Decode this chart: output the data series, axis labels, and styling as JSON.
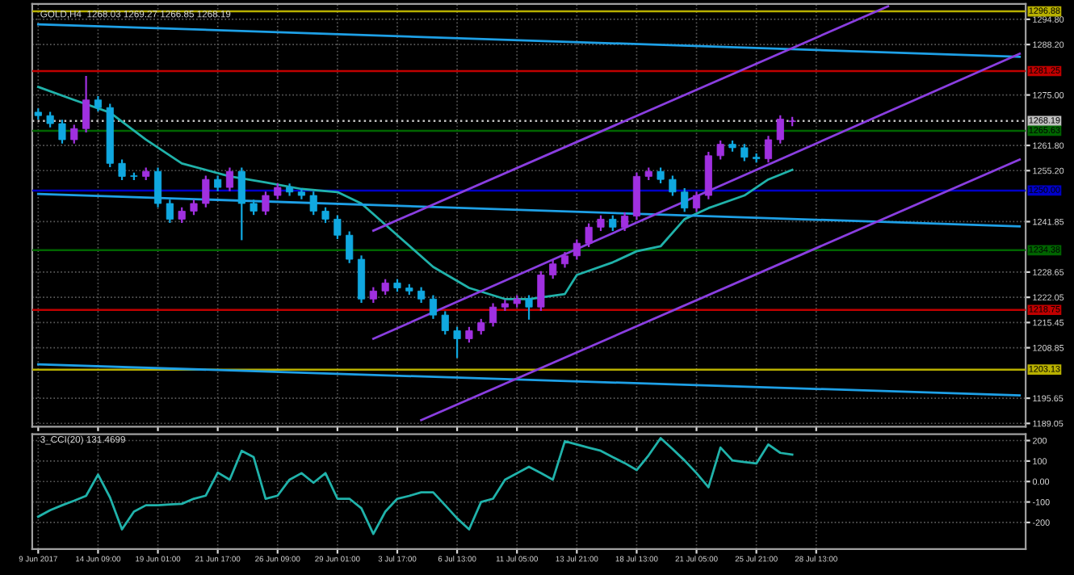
{
  "chart_data": [
    {
      "type": "candlestick",
      "title": "GOLD,H4  1268.03 1269.27 1266.85 1268.19",
      "categories": [
        null,
        null,
        null,
        null,
        null,
        null,
        null,
        null,
        null,
        null,
        null,
        null,
        null,
        null,
        null,
        null,
        null,
        null,
        null,
        null,
        null,
        null,
        null,
        null,
        null,
        null,
        null,
        null,
        null,
        null,
        null,
        null,
        null,
        null,
        null,
        null,
        null,
        null,
        null,
        null,
        null,
        null,
        null,
        null,
        null,
        null,
        null,
        null,
        null,
        null,
        null,
        null,
        null,
        null,
        null,
        null,
        null,
        null,
        null,
        null,
        null,
        null,
        null,
        null,
        null,
        null,
        null,
        null,
        null,
        null,
        null,
        null,
        null,
        null,
        null,
        null,
        null,
        null,
        null,
        null,
        null,
        null,
        null
      ],
      "ohlc": [
        [
          1270.5,
          1271.5,
          1268.6,
          1269.6
        ],
        [
          1269.6,
          1270.6,
          1266.5,
          1267.5
        ],
        [
          1267.5,
          1268.5,
          1262.3,
          1263.3
        ],
        [
          1263.3,
          1267.2,
          1262.3,
          1266.2
        ],
        [
          1266.2,
          1280.0,
          1265.2,
          1273.7
        ],
        [
          1273.7,
          1274.7,
          1270.7,
          1271.7
        ],
        [
          1271.7,
          1272.7,
          1256.1,
          1257.1
        ],
        [
          1257.1,
          1258.1,
          1252.7,
          1253.7
        ],
        [
          1253.7,
          1254.7,
          1252.7,
          1253.7
        ],
        [
          1253.7,
          1256.0,
          1252.7,
          1255.0
        ],
        [
          1255.0,
          1256.0,
          1245.6,
          1246.6
        ],
        [
          1246.6,
          1247.6,
          1241.5,
          1242.5
        ],
        [
          1242.5,
          1245.6,
          1241.5,
          1244.6
        ],
        [
          1244.6,
          1247.6,
          1243.6,
          1246.6
        ],
        [
          1246.6,
          1253.9,
          1245.6,
          1252.9
        ],
        [
          1252.9,
          1253.9,
          1249.8,
          1250.8
        ],
        [
          1250.8,
          1256.0,
          1249.8,
          1255.0
        ],
        [
          1255.0,
          1256.0,
          1237.0,
          1246.6
        ],
        [
          1246.6,
          1247.6,
          1243.6,
          1244.6
        ],
        [
          1244.6,
          1249.7,
          1243.6,
          1248.7
        ],
        [
          1248.7,
          1251.8,
          1247.7,
          1250.8
        ],
        [
          1250.8,
          1251.8,
          1248.6,
          1249.6
        ],
        [
          1249.6,
          1250.6,
          1247.7,
          1248.7
        ],
        [
          1248.7,
          1249.7,
          1243.6,
          1244.6
        ],
        [
          1244.6,
          1245.6,
          1241.5,
          1242.5
        ],
        [
          1242.5,
          1243.5,
          1237.3,
          1238.3
        ],
        [
          1238.3,
          1239.3,
          1231.0,
          1232.0
        ],
        [
          1232.0,
          1233.0,
          1220.6,
          1221.6
        ],
        [
          1221.6,
          1224.7,
          1220.6,
          1223.7
        ],
        [
          1223.7,
          1226.8,
          1222.7,
          1225.8
        ],
        [
          1225.8,
          1226.8,
          1223.5,
          1224.5
        ],
        [
          1224.5,
          1225.5,
          1222.7,
          1223.7
        ],
        [
          1223.7,
          1224.7,
          1220.6,
          1221.6
        ],
        [
          1221.6,
          1222.6,
          1216.4,
          1217.4
        ],
        [
          1217.4,
          1218.4,
          1212.3,
          1213.3
        ],
        [
          1213.3,
          1214.3,
          1206.2,
          1211.2
        ],
        [
          1211.2,
          1214.3,
          1210.2,
          1213.3
        ],
        [
          1213.3,
          1216.4,
          1212.3,
          1215.4
        ],
        [
          1215.4,
          1220.5,
          1214.4,
          1219.5
        ],
        [
          1219.5,
          1221.4,
          1218.5,
          1220.4
        ],
        [
          1220.4,
          1222.6,
          1219.4,
          1221.6
        ],
        [
          1221.6,
          1222.6,
          1216.2,
          1219.5
        ],
        [
          1219.5,
          1228.9,
          1218.5,
          1227.9
        ],
        [
          1227.9,
          1231.8,
          1226.9,
          1230.8
        ],
        [
          1230.8,
          1233.9,
          1229.8,
          1232.9
        ],
        [
          1232.9,
          1237.2,
          1231.9,
          1236.2
        ],
        [
          1236.2,
          1241.4,
          1235.2,
          1240.4
        ],
        [
          1240.4,
          1243.5,
          1239.4,
          1242.5
        ],
        [
          1242.5,
          1243.5,
          1239.4,
          1240.4
        ],
        [
          1240.4,
          1244.3,
          1239.4,
          1243.3
        ],
        [
          1243.3,
          1254.7,
          1242.3,
          1253.7
        ],
        [
          1253.7,
          1256.0,
          1252.7,
          1255.0
        ],
        [
          1255.0,
          1256.0,
          1251.9,
          1252.9
        ],
        [
          1252.9,
          1253.9,
          1248.6,
          1249.6
        ],
        [
          1249.6,
          1250.6,
          1244.4,
          1245.4
        ],
        [
          1245.4,
          1249.7,
          1244.4,
          1248.7
        ],
        [
          1248.7,
          1260.1,
          1247.7,
          1259.1
        ],
        [
          1259.1,
          1263.1,
          1258.1,
          1262.1
        ],
        [
          1262.1,
          1263.1,
          1260.2,
          1261.2
        ],
        [
          1261.2,
          1262.2,
          1257.7,
          1258.7
        ],
        [
          1258.7,
          1259.7,
          1257.3,
          1258.3
        ],
        [
          1258.3,
          1264.3,
          1257.3,
          1263.3
        ],
        [
          1263.3,
          1269.7,
          1262.3,
          1268.7
        ],
        [
          1268.03,
          1269.27,
          1266.85,
          1268.19
        ],
        null,
        null,
        null,
        null,
        null,
        null,
        null,
        null,
        null,
        null,
        null,
        null,
        null,
        null,
        null,
        null,
        null,
        null,
        null
      ],
      "colors": [
        "#10a8e0",
        "#10a8e0",
        "#10a8e0",
        "#a030e0",
        "#a030e0",
        "#10a8e0",
        "#10a8e0",
        "#10a8e0",
        "#10a8e0",
        "#a030e0",
        "#10a8e0",
        "#10a8e0",
        "#a030e0",
        "#a030e0",
        "#a030e0",
        "#10a8e0",
        "#a030e0",
        "#10a8e0",
        "#10a8e0",
        "#a030e0",
        "#a030e0",
        "#10a8e0",
        "#10a8e0",
        "#10a8e0",
        "#10a8e0",
        "#10a8e0",
        "#10a8e0",
        "#10a8e0",
        "#a030e0",
        "#a030e0",
        "#10a8e0",
        "#10a8e0",
        "#10a8e0",
        "#10a8e0",
        "#10a8e0",
        "#10a8e0",
        "#a030e0",
        "#a030e0",
        "#a030e0",
        "#a030e0",
        "#a030e0",
        "#10a8e0",
        "#a030e0",
        "#a030e0",
        "#a030e0",
        "#a030e0",
        "#a030e0",
        "#a030e0",
        "#10a8e0",
        "#a030e0",
        "#a030e0",
        "#a030e0",
        "#10a8e0",
        "#10a8e0",
        "#10a8e0",
        "#a030e0",
        "#a030e0",
        "#a030e0",
        "#10a8e0",
        "#10a8e0",
        "#10a8e0",
        "#a030e0",
        "#a030e0",
        "#a030e0",
        null,
        null,
        null,
        null,
        null,
        null,
        null,
        null,
        null,
        null,
        null,
        null,
        null,
        null,
        null,
        null,
        null,
        null,
        null
      ],
      "series": [
        {
          "type": "line",
          "color": "#20b2aa",
          "values": [
            1277.1,
            null,
            null,
            1273.7,
            null,
            null,
            1270.4,
            null,
            null,
            1263.3,
            null,
            null,
            1257.1,
            null,
            null,
            null,
            1253.7,
            null,
            null,
            1252.1,
            null,
            null,
            1250.4,
            null,
            null,
            1249.6,
            null,
            1246.6,
            null,
            null,
            1238.3,
            null,
            null,
            1230.0,
            null,
            null,
            1224.5,
            null,
            null,
            1221.6,
            null,
            1221.6,
            null,
            null,
            1222.9,
            1227.9,
            null,
            null,
            1231.2,
            null,
            1234.1,
            null,
            1235.4,
            null,
            1242.5,
            null,
            1245.4,
            null,
            null,
            1248.7,
            null,
            1252.9,
            null,
            1255.4,
            null,
            null,
            null,
            null,
            null,
            null,
            null,
            null,
            null,
            null,
            null,
            null,
            null,
            null,
            null,
            null,
            null,
            null,
            null
          ]
        },
        {
          "type": "line",
          "color": "#1ea0e6",
          "values": [
            1293.5,
            null,
            null,
            null,
            null,
            null,
            null,
            null,
            null,
            null,
            null,
            null,
            null,
            null,
            null,
            null,
            null,
            null,
            null,
            null,
            null,
            null,
            null,
            null,
            null,
            null,
            null,
            null,
            null,
            null,
            null,
            null,
            null,
            null,
            null,
            null,
            null,
            null,
            null,
            null,
            null,
            null,
            null,
            null,
            null,
            null,
            null,
            null,
            null,
            null,
            null,
            null,
            null,
            null,
            null,
            null,
            null,
            null,
            null,
            null,
            null,
            null,
            null,
            null,
            null,
            null,
            null,
            null,
            null,
            null,
            null,
            null,
            null,
            null,
            null,
            null,
            null,
            null,
            null,
            null,
            null,
            null,
            1285.0
          ]
        },
        {
          "type": "line",
          "color": "#1ea0e6",
          "values": [
            1249.1,
            null,
            null,
            null,
            null,
            null,
            null,
            null,
            null,
            null,
            null,
            null,
            null,
            null,
            null,
            null,
            null,
            null,
            null,
            null,
            null,
            null,
            null,
            null,
            null,
            null,
            null,
            null,
            null,
            null,
            null,
            null,
            null,
            null,
            null,
            null,
            null,
            null,
            null,
            null,
            null,
            null,
            null,
            null,
            null,
            null,
            null,
            null,
            null,
            null,
            null,
            null,
            null,
            null,
            null,
            null,
            null,
            null,
            null,
            null,
            null,
            null,
            null,
            null,
            null,
            null,
            null,
            null,
            null,
            null,
            null,
            null,
            null,
            null,
            null,
            null,
            null,
            null,
            null,
            null,
            null,
            null,
            1240.6
          ]
        },
        {
          "type": "line",
          "color": "#1ea0e6",
          "values": [
            1204.5,
            null,
            null,
            null,
            null,
            null,
            null,
            null,
            null,
            null,
            null,
            null,
            null,
            null,
            null,
            null,
            null,
            null,
            null,
            null,
            null,
            null,
            null,
            null,
            null,
            null,
            null,
            null,
            null,
            null,
            null,
            null,
            null,
            null,
            null,
            null,
            null,
            null,
            null,
            null,
            null,
            null,
            null,
            null,
            null,
            null,
            null,
            null,
            null,
            null,
            null,
            null,
            null,
            null,
            null,
            null,
            null,
            null,
            null,
            null,
            null,
            null,
            null,
            null,
            null,
            null,
            null,
            null,
            null,
            null,
            null,
            null,
            null,
            null,
            null,
            null,
            null,
            null,
            null,
            null,
            null,
            null,
            1196.4
          ]
        },
        {
          "type": "line",
          "color": "#8a3ee0",
          "values": [
            null,
            null,
            null,
            null,
            null,
            null,
            null,
            null,
            null,
            null,
            null,
            null,
            null,
            null,
            null,
            null,
            null,
            null,
            null,
            null,
            null,
            null,
            null,
            null,
            null,
            null,
            null,
            null,
            1239.5,
            null,
            null,
            null,
            null,
            null,
            null,
            null,
            null,
            null,
            null,
            null,
            null,
            null,
            null,
            null,
            null,
            null,
            null,
            null,
            null,
            null,
            null,
            null,
            null,
            null,
            null,
            null,
            null,
            null,
            null,
            null,
            null,
            null,
            null,
            null,
            null,
            null,
            null,
            null,
            null,
            null,
            null,
            1298.2,
            null,
            null,
            null,
            null,
            null,
            null,
            null,
            null,
            null,
            null,
            null
          ]
        },
        {
          "type": "line",
          "color": "#8a3ee0",
          "values": [
            null,
            null,
            null,
            null,
            null,
            null,
            null,
            null,
            null,
            null,
            null,
            null,
            null,
            null,
            null,
            null,
            null,
            null,
            null,
            null,
            null,
            null,
            null,
            null,
            null,
            null,
            null,
            null,
            1211.2,
            null,
            null,
            null,
            null,
            null,
            null,
            null,
            null,
            null,
            null,
            null,
            null,
            null,
            null,
            null,
            null,
            null,
            null,
            null,
            null,
            null,
            null,
            null,
            null,
            null,
            null,
            null,
            null,
            null,
            null,
            null,
            null,
            null,
            null,
            null,
            null,
            null,
            null,
            null,
            null,
            null,
            null,
            null,
            null,
            null,
            null,
            null,
            null,
            null,
            null,
            null,
            null,
            null,
            1285.8
          ]
        },
        {
          "type": "line",
          "color": "#8a3ee0",
          "values": [
            null,
            null,
            null,
            null,
            null,
            null,
            null,
            null,
            null,
            null,
            null,
            null,
            null,
            null,
            null,
            null,
            null,
            null,
            null,
            null,
            null,
            null,
            null,
            null,
            null,
            null,
            null,
            null,
            null,
            null,
            null,
            null,
            1189.9,
            null,
            null,
            null,
            null,
            null,
            null,
            null,
            null,
            null,
            null,
            null,
            null,
            null,
            null,
            null,
            null,
            null,
            null,
            null,
            null,
            null,
            null,
            null,
            null,
            null,
            null,
            null,
            null,
            null,
            null,
            null,
            null,
            null,
            null,
            null,
            null,
            null,
            null,
            null,
            null,
            null,
            null,
            null,
            null,
            null,
            null,
            null,
            null,
            null,
            1258.1
          ]
        }
      ],
      "ref_lines": [
        {
          "axis": "y",
          "value": 1296.88,
          "label": "1296.88",
          "color": "#b8b000"
        },
        {
          "axis": "y",
          "value": 1281.25,
          "label": "1281.25",
          "color": "#c00000"
        },
        {
          "axis": "y",
          "value": 1268.19,
          "label": "1268.19",
          "color": "#c0c0c0",
          "line_style": "dotted"
        },
        {
          "axis": "y",
          "value": 1265.63,
          "label": "1265.63",
          "color": "#006400"
        },
        {
          "axis": "y",
          "value": 1250.0,
          "label": "1250.00",
          "color": "#0000c8"
        },
        {
          "axis": "y",
          "value": 1234.38,
          "label": "1234.38",
          "color": "#006400"
        },
        {
          "axis": "y",
          "value": 1218.75,
          "label": "1218.75",
          "color": "#c00000"
        },
        {
          "axis": "y",
          "value": 1203.13,
          "label": "1203.13",
          "color": "#b8b000"
        }
      ],
      "ylim": [
        1188.2,
        1298.8
      ],
      "yticks": [
        {
          "value": 1294.8,
          "label": "1294.80"
        },
        {
          "value": 1288.2,
          "label": "1288.20"
        },
        {
          "value": 1275.0,
          "label": "1275.00"
        },
        {
          "value": 1261.8,
          "label": "1261.80"
        },
        {
          "value": 1255.2,
          "label": "1255.20"
        },
        {
          "value": 1241.85,
          "label": "1241.85"
        },
        {
          "value": 1228.65,
          "label": "1228.65"
        },
        {
          "value": 1222.05,
          "label": "1222.05"
        },
        {
          "value": 1215.45,
          "label": "1215.45"
        },
        {
          "value": 1208.85,
          "label": "1208.85"
        },
        {
          "value": 1195.65,
          "label": "1195.65"
        },
        {
          "value": 1189.05,
          "label": "1189.05"
        }
      ],
      "tick_labels": "y",
      "grid": true
    },
    {
      "type": "line",
      "title": "3_CCI(20) 131.4699",
      "categories": [
        "9 Jun 2017",
        null,
        null,
        null,
        null,
        "14 Jun 09:00",
        null,
        null,
        null,
        null,
        "19 Jun 01:00",
        null,
        null,
        null,
        null,
        "21 Jun 17:00",
        null,
        null,
        null,
        null,
        "26 Jun 09:00",
        null,
        null,
        null,
        null,
        "29 Jun 01:00",
        null,
        null,
        null,
        null,
        "3 Jul 17:00",
        null,
        null,
        null,
        null,
        "6 Jul 13:00",
        null,
        null,
        null,
        null,
        "11 Jul 05:00",
        null,
        null,
        null,
        null,
        "13 Jul 21:00",
        null,
        null,
        null,
        null,
        "18 Jul 13:00",
        null,
        null,
        null,
        null,
        "21 Jul 05:00",
        null,
        null,
        null,
        null,
        "25 Jul 21:00",
        null,
        null,
        null,
        null,
        "28 Jul 13:00",
        null,
        null,
        null,
        null,
        null,
        null,
        null,
        null,
        null,
        null,
        null,
        null,
        null,
        null,
        null,
        null,
        null
      ],
      "series": [
        {
          "color": "#20b2aa",
          "values": [
            -172,
            -140,
            -116,
            -94,
            -70,
            34,
            -78,
            -234,
            -147,
            -116,
            -116,
            -112,
            -109,
            -84,
            -69,
            44,
            9,
            150,
            119,
            -84,
            -69,
            9,
            41,
            -6,
            41,
            -84,
            -84,
            -131,
            -256,
            -147,
            -84,
            -70,
            -53,
            -53,
            -116,
            -180,
            -234,
            -100,
            -84,
            9,
            40,
            72,
            41,
            9,
            197,
            181,
            165,
            150,
            119,
            90,
            56,
            128,
            212,
            159,
            103,
            41,
            -28,
            166,
            103,
            95,
            88,
            181,
            140,
            131,
            null,
            null,
            null,
            null,
            null,
            null,
            null,
            null,
            null,
            null,
            null,
            null,
            null,
            null,
            null,
            null,
            null,
            null,
            null
          ]
        }
      ],
      "ylim": [
        -330.2565,
        231.4692
      ],
      "yticks": [
        200,
        100,
        {
          "value": 0,
          "label": "0.00"
        },
        -100,
        -200
      ],
      "grid": true
    }
  ]
}
